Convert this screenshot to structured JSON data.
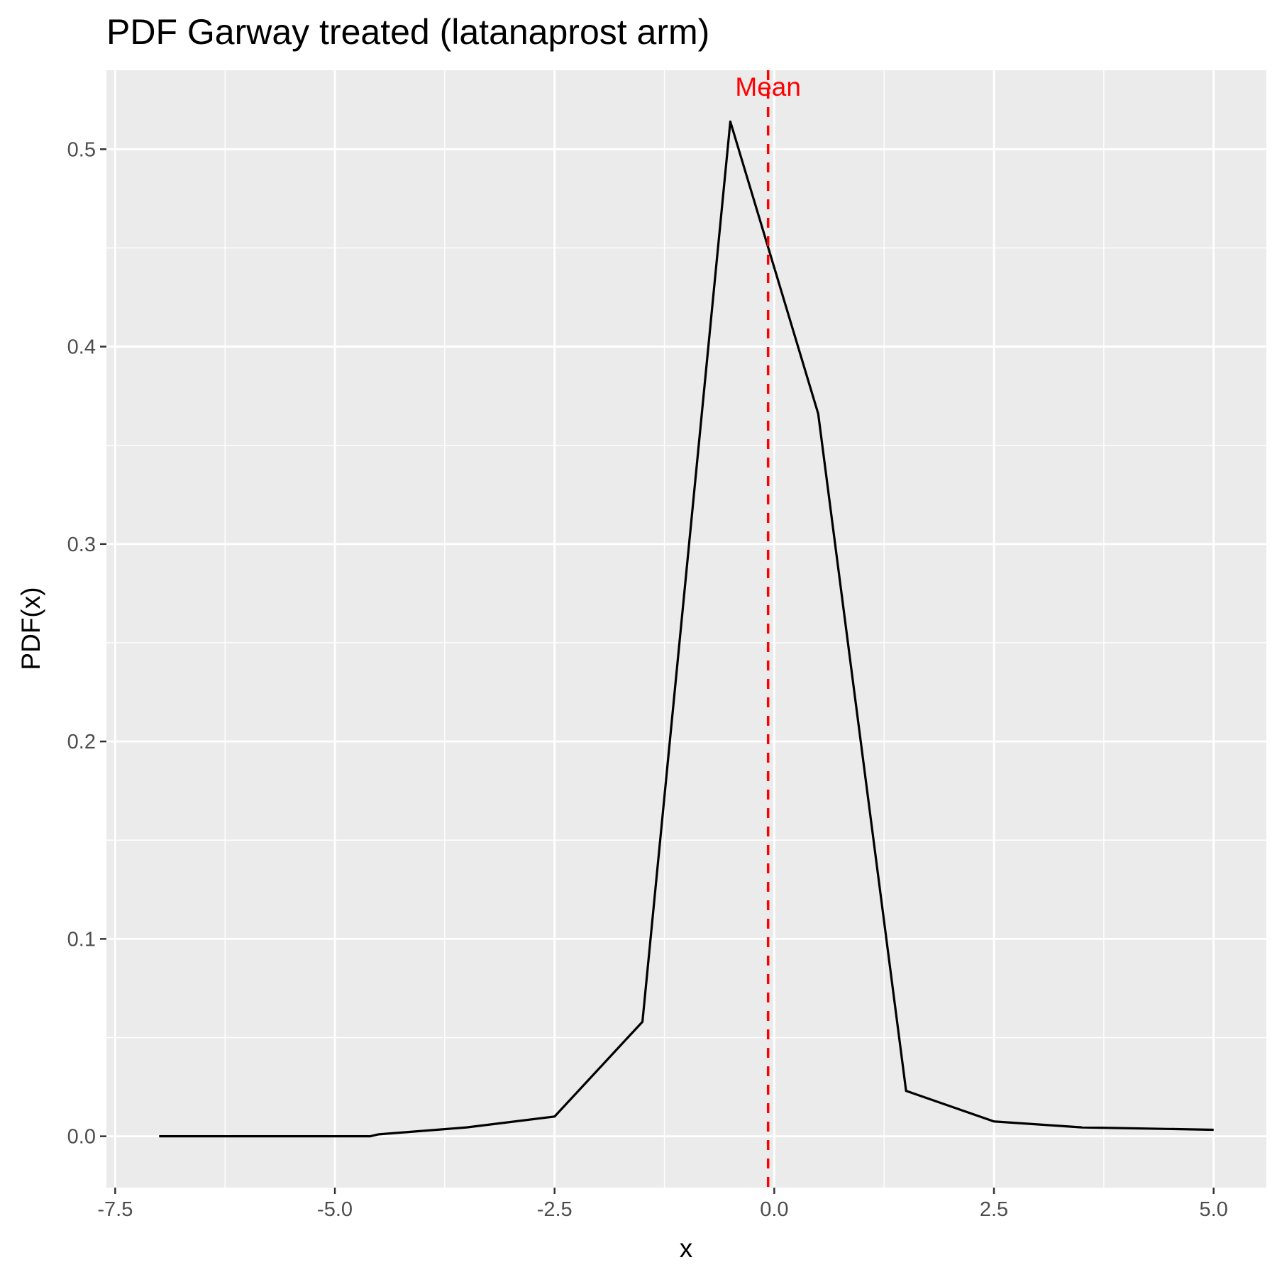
{
  "chart_data": {
    "type": "line",
    "title": "PDF Garway treated (latanaprost arm)",
    "xlabel": "x",
    "ylabel": "PDF(x)",
    "xlim": [
      -7.6,
      5.6
    ],
    "ylim": [
      -0.026,
      0.54
    ],
    "x_ticks": [
      -7.5,
      -5.0,
      -2.5,
      0.0,
      2.5,
      5.0
    ],
    "x_tick_labels": [
      "-7.5",
      "-5.0",
      "-2.5",
      "0.0",
      "2.5",
      "5.0"
    ],
    "y_ticks": [
      0.0,
      0.1,
      0.2,
      0.3,
      0.4,
      0.5
    ],
    "y_tick_labels": [
      "0.0",
      "0.1",
      "0.2",
      "0.3",
      "0.4",
      "0.5"
    ],
    "grid": true,
    "series": [
      {
        "color": "#000000",
        "x": [
          -7.0,
          -4.6,
          -4.5,
          -3.5,
          -2.5,
          -1.5,
          -0.5,
          0.5,
          1.5,
          2.5,
          3.5,
          5.0
        ],
        "y": [
          0.0,
          0.0,
          0.001,
          0.0045,
          0.01,
          0.058,
          0.514,
          0.366,
          0.023,
          0.0075,
          0.0045,
          0.0033
        ]
      }
    ],
    "annotations": [
      {
        "type": "vline",
        "x": -0.07,
        "color": "#ff0000",
        "style": "dashed",
        "label": "Mean"
      }
    ]
  }
}
